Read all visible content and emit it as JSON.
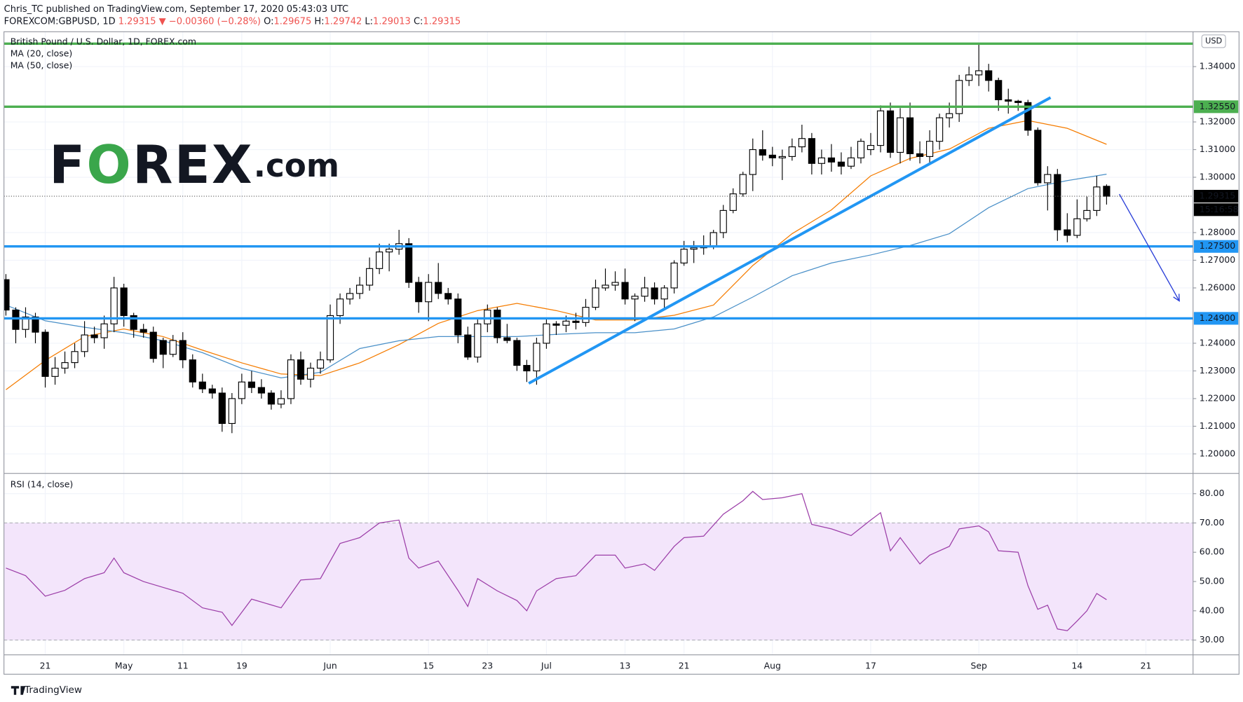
{
  "header": {
    "author_line": "Chris_TC published on TradingView.com, September 17, 2020 05:43:03 UTC",
    "symbol": "FOREXCOM:GBPUSD, 1D",
    "last": "1.29315",
    "change": "▼ −0.00360 (−0.28%)",
    "ohlc": [
      {
        "label": "O:",
        "value": "1.29675"
      },
      {
        "label": "H:",
        "value": "1.29742"
      },
      {
        "label": "L:",
        "value": "1.29013"
      },
      {
        "label": "C:",
        "value": "1.29315"
      }
    ]
  },
  "logo": "FOREX.com",
  "footer": "TradingView",
  "chart_data": [
    {
      "type": "candlestick",
      "title": "British Pound / U.S. Dollar, 1D, FOREX.com",
      "currency": "USD",
      "xlim": [
        -4.2,
        116.8
      ],
      "ylim": [
        1.1931,
        1.3526
      ],
      "yticks": [
        {
          "value": 1.34,
          "label": "1.34000"
        },
        {
          "value": 1.32,
          "label": "1.32000"
        },
        {
          "value": 1.31,
          "label": "1.31000"
        },
        {
          "value": 1.3,
          "label": "1.30000"
        },
        {
          "value": 1.28,
          "label": "1.28000"
        },
        {
          "value": 1.27,
          "label": "1.27000"
        },
        {
          "value": 1.26,
          "label": "1.26000"
        },
        {
          "value": 1.24,
          "label": "1.24000"
        },
        {
          "value": 1.23,
          "label": "1.23000"
        },
        {
          "value": 1.22,
          "label": "1.22000"
        },
        {
          "value": 1.21,
          "label": "1.21000"
        },
        {
          "value": 1.2,
          "label": "1.20000"
        }
      ],
      "candles": {
        "up_color": "#ffffff",
        "down_color": "#000000",
        "x": [
          -4,
          -3,
          -2,
          -1,
          0,
          1,
          2,
          3,
          4,
          5,
          6,
          7,
          8,
          9,
          10,
          11,
          12,
          13,
          14,
          15,
          16,
          17,
          18,
          19,
          20,
          21,
          22,
          23,
          24,
          25,
          26,
          27,
          28,
          29,
          30,
          31,
          32,
          33,
          34,
          35,
          36,
          37,
          38,
          39,
          40,
          41,
          42,
          43,
          44,
          45,
          46,
          47,
          48,
          49,
          50,
          51,
          52,
          53,
          54,
          55,
          56,
          57,
          58,
          59,
          60,
          61,
          62,
          63,
          64,
          65,
          66,
          67,
          68,
          69,
          70,
          71,
          72,
          73,
          74,
          75,
          76,
          77,
          78,
          79,
          80,
          81,
          82,
          83,
          84,
          85,
          86,
          87,
          88,
          89,
          90,
          91,
          92,
          93,
          94,
          95,
          96,
          97,
          98,
          99,
          100,
          101,
          102,
          103,
          104,
          105,
          106,
          107,
          108
        ],
        "open": [
          1.263,
          1.252,
          1.245,
          1.2495,
          1.244,
          1.228,
          1.231,
          1.233,
          1.237,
          1.243,
          1.242,
          1.247,
          1.26,
          1.25,
          1.245,
          1.244,
          1.241,
          1.236,
          1.241,
          1.234,
          1.226,
          1.2235,
          1.222,
          1.211,
          1.22,
          1.226,
          1.224,
          1.222,
          1.218,
          1.22,
          1.234,
          1.227,
          1.231,
          1.234,
          1.25,
          1.256,
          1.258,
          1.261,
          1.267,
          1.273,
          1.274,
          1.276,
          1.262,
          1.255,
          1.262,
          1.258,
          1.256,
          1.243,
          1.235,
          1.247,
          1.252,
          1.242,
          1.241,
          1.232,
          1.23,
          1.24,
          1.247,
          1.2465,
          1.248,
          1.2475,
          1.253,
          1.26,
          1.261,
          1.262,
          1.256,
          1.257,
          1.26,
          1.256,
          1.26,
          1.269,
          1.274,
          1.2745,
          1.275,
          1.28,
          1.288,
          1.294,
          1.301,
          1.31,
          1.308,
          1.307,
          1.3075,
          1.311,
          1.314,
          1.305,
          1.307,
          1.3055,
          1.304,
          1.307,
          1.31,
          1.3115,
          1.324,
          1.309,
          1.3215,
          1.3085,
          1.3075,
          1.313,
          1.3215,
          1.323,
          1.335,
          1.337,
          1.3385,
          1.335,
          1.328,
          1.3275,
          1.327,
          1.317,
          1.298,
          1.301,
          1.281,
          1.279,
          1.285,
          1.288,
          1.29675
        ],
        "high": [
          1.265,
          1.253,
          1.253,
          1.251,
          1.245,
          1.235,
          1.237,
          1.24,
          1.248,
          1.246,
          1.25,
          1.264,
          1.2615,
          1.251,
          1.247,
          1.246,
          1.242,
          1.243,
          1.244,
          1.236,
          1.229,
          1.225,
          1.224,
          1.222,
          1.229,
          1.23,
          1.227,
          1.223,
          1.223,
          1.236,
          1.237,
          1.233,
          1.237,
          1.254,
          1.258,
          1.26,
          1.264,
          1.271,
          1.276,
          1.276,
          1.281,
          1.278,
          1.264,
          1.265,
          1.269,
          1.26,
          1.258,
          1.246,
          1.249,
          1.254,
          1.253,
          1.247,
          1.242,
          1.234,
          1.242,
          1.249,
          1.248,
          1.25,
          1.251,
          1.256,
          1.263,
          1.267,
          1.266,
          1.267,
          1.258,
          1.264,
          1.262,
          1.261,
          1.27,
          1.277,
          1.277,
          1.279,
          1.281,
          1.29,
          1.296,
          1.302,
          1.314,
          1.317,
          1.311,
          1.31,
          1.314,
          1.319,
          1.316,
          1.31,
          1.312,
          1.309,
          1.311,
          1.314,
          1.316,
          1.326,
          1.327,
          1.325,
          1.327,
          1.313,
          1.317,
          1.323,
          1.327,
          1.337,
          1.34,
          1.348,
          1.341,
          1.336,
          1.332,
          1.328,
          1.328,
          1.318,
          1.304,
          1.303,
          1.287,
          1.292,
          1.293,
          1.3005,
          1.29742
        ],
        "low": [
          1.25,
          1.24,
          1.242,
          1.24,
          1.224,
          1.225,
          1.229,
          1.231,
          1.235,
          1.24,
          1.238,
          1.244,
          1.246,
          1.242,
          1.242,
          1.233,
          1.231,
          1.235,
          1.231,
          1.224,
          1.222,
          1.22,
          1.208,
          1.2075,
          1.218,
          1.222,
          1.22,
          1.216,
          1.2165,
          1.218,
          1.225,
          1.224,
          1.229,
          1.233,
          1.247,
          1.254,
          1.256,
          1.259,
          1.265,
          1.266,
          1.272,
          1.26,
          1.251,
          1.248,
          1.256,
          1.254,
          1.24,
          1.234,
          1.233,
          1.244,
          1.24,
          1.24,
          1.23,
          1.226,
          1.225,
          1.238,
          1.243,
          1.244,
          1.245,
          1.246,
          1.252,
          1.259,
          1.259,
          1.254,
          1.248,
          1.255,
          1.254,
          1.252,
          1.258,
          1.268,
          1.269,
          1.272,
          1.274,
          1.278,
          1.287,
          1.293,
          1.295,
          1.306,
          1.304,
          1.299,
          1.306,
          1.309,
          1.301,
          1.301,
          1.302,
          1.301,
          1.303,
          1.305,
          1.308,
          1.309,
          1.307,
          1.305,
          1.306,
          1.305,
          1.305,
          1.31,
          1.318,
          1.32,
          1.333,
          1.333,
          1.331,
          1.324,
          1.323,
          1.324,
          1.315,
          1.297,
          1.288,
          1.277,
          1.2765,
          1.278,
          1.284,
          1.286,
          1.29013
        ],
        "close": [
          1.252,
          1.245,
          1.2495,
          1.244,
          1.228,
          1.231,
          1.233,
          1.237,
          1.243,
          1.242,
          1.247,
          1.26,
          1.25,
          1.245,
          1.244,
          1.2345,
          1.236,
          1.241,
          1.234,
          1.226,
          1.2235,
          1.222,
          1.211,
          1.22,
          1.226,
          1.224,
          1.222,
          1.218,
          1.22,
          1.234,
          1.227,
          1.231,
          1.234,
          1.25,
          1.256,
          1.258,
          1.261,
          1.267,
          1.273,
          1.274,
          1.276,
          1.262,
          1.255,
          1.262,
          1.258,
          1.256,
          1.243,
          1.235,
          1.247,
          1.252,
          1.242,
          1.241,
          1.232,
          1.23,
          1.24,
          1.247,
          1.2465,
          1.248,
          1.2475,
          1.253,
          1.26,
          1.261,
          1.262,
          1.256,
          1.257,
          1.26,
          1.256,
          1.26,
          1.269,
          1.274,
          1.2745,
          1.275,
          1.28,
          1.288,
          1.294,
          1.301,
          1.31,
          1.308,
          1.307,
          1.3075,
          1.311,
          1.314,
          1.305,
          1.307,
          1.3055,
          1.304,
          1.307,
          1.313,
          1.3115,
          1.324,
          1.309,
          1.3215,
          1.3085,
          1.3075,
          1.313,
          1.3215,
          1.323,
          1.335,
          1.337,
          1.3385,
          1.335,
          1.328,
          1.3275,
          1.327,
          1.317,
          1.298,
          1.301,
          1.281,
          1.279,
          1.285,
          1.288,
          1.2965,
          1.29315
        ]
      },
      "series": [
        {
          "name": "MA (20, close)",
          "color": "#f57c00",
          "x": [
            -4,
            0,
            4,
            8,
            12,
            16,
            20,
            24,
            28,
            32,
            36,
            40,
            44,
            48,
            52,
            56,
            60,
            64,
            68,
            72,
            76,
            80,
            84,
            88,
            92,
            96,
            100,
            104,
            108
          ],
          "values": [
            1.2232,
            1.2338,
            1.2424,
            1.2452,
            1.2424,
            1.2375,
            1.2329,
            1.2289,
            1.2283,
            1.2329,
            1.2395,
            1.2472,
            1.2518,
            1.2544,
            1.2518,
            1.2484,
            1.2484,
            1.2501,
            1.2538,
            1.2681,
            1.2796,
            1.2882,
            1.3005,
            1.3068,
            1.3102,
            1.3177,
            1.3205,
            1.3177,
            1.3119
          ]
        },
        {
          "name": "MA (50, close)",
          "color": "#4a90c8",
          "x": [
            -4,
            0,
            4,
            8,
            12,
            16,
            20,
            24,
            28,
            32,
            36,
            40,
            44,
            48,
            52,
            56,
            60,
            64,
            68,
            72,
            76,
            80,
            84,
            88,
            92,
            96,
            100,
            104,
            108
          ],
          "values": [
            1.2538,
            1.2481,
            1.2458,
            1.2438,
            1.2409,
            1.2366,
            1.2309,
            1.2275,
            1.2295,
            1.2381,
            1.2409,
            1.2424,
            1.2424,
            1.2424,
            1.2432,
            1.2438,
            1.2438,
            1.2452,
            1.2495,
            1.2567,
            1.2644,
            1.269,
            1.2719,
            1.2753,
            1.2796,
            1.289,
            1.2959,
            1.2988,
            1.3011
          ]
        }
      ],
      "levels": [
        {
          "value": 1.3483,
          "color": "#4caf50"
        },
        {
          "value": 1.3255,
          "label": "1.32550",
          "color": "#4caf50"
        },
        {
          "value": 1.275,
          "label": "1.27500",
          "color": "#2196f3"
        },
        {
          "value": 1.249,
          "label": "1.24900",
          "color": "#2196f3"
        }
      ],
      "last_price": {
        "value": 1.29315,
        "label": "1.29315",
        "countdown": "15:16:58"
      },
      "trendlines": [
        {
          "x": [
            49.2,
            102.3
          ],
          "y": [
            1.2255,
            1.3288
          ],
          "color": "#2196f3"
        },
        {
          "x": [
            109.3,
            115.4
          ],
          "y": [
            1.2939,
            1.2553
          ],
          "color": "#2a3fd8",
          "arrow": true
        }
      ]
    },
    {
      "type": "line",
      "xlim": [
        -4.2,
        116.8
      ],
      "ylim": [
        25.1,
        86.8
      ],
      "xticks": [
        {
          "value": 0,
          "label": "21"
        },
        {
          "value": 8,
          "label": "May"
        },
        {
          "value": 14,
          "label": "11"
        },
        {
          "value": 20,
          "label": "19"
        },
        {
          "value": 29,
          "label": "Jun"
        },
        {
          "value": 39,
          "label": "15"
        },
        {
          "value": 45,
          "label": "23"
        },
        {
          "value": 51,
          "label": "Jul"
        },
        {
          "value": 59,
          "label": "13"
        },
        {
          "value": 65,
          "label": "21"
        },
        {
          "value": 74,
          "label": "Aug"
        },
        {
          "value": 84,
          "label": "17"
        },
        {
          "value": 95,
          "label": "Sep"
        },
        {
          "value": 105,
          "label": "14"
        },
        {
          "value": 112,
          "label": "21"
        }
      ],
      "yticks": [
        {
          "value": 80,
          "label": "80.00"
        },
        {
          "value": 70,
          "label": "70.00"
        },
        {
          "value": 60,
          "label": "60.00"
        },
        {
          "value": 50,
          "label": "50.00"
        },
        {
          "value": 40,
          "label": "40.00"
        },
        {
          "value": 30,
          "label": "30.00"
        }
      ],
      "band": [
        30,
        70
      ],
      "band_color": "#f3e5fb",
      "series": [
        {
          "name": "RSI (14, close)",
          "color": "#9c3ea8",
          "x": [
            -4,
            -2,
            0,
            2,
            4,
            6,
            7,
            8,
            10,
            12,
            14,
            16,
            18,
            19,
            21,
            24,
            26,
            28,
            30,
            32,
            34,
            36,
            37,
            38,
            40,
            42,
            43,
            44,
            46,
            48,
            49,
            50,
            52,
            54,
            56,
            58,
            59,
            61,
            62,
            64,
            65,
            67,
            69,
            71,
            72,
            73,
            75,
            77,
            78,
            80,
            82,
            84,
            85,
            86,
            87,
            89,
            90,
            92,
            93,
            95,
            96,
            97,
            99,
            100,
            101,
            102,
            103,
            104,
            105,
            106,
            107,
            108
          ],
          "values": [
            54.6,
            52,
            45,
            47,
            51,
            53,
            58,
            53,
            50,
            48,
            46,
            41,
            39.5,
            35,
            44,
            41,
            50.5,
            51,
            63,
            65,
            70,
            71,
            58,
            54.6,
            57,
            47,
            41.5,
            51,
            46.8,
            43.5,
            40,
            46.8,
            51,
            52,
            59,
            59,
            54.6,
            56,
            53.8,
            62,
            65,
            65.5,
            73,
            77.6,
            80.8,
            78,
            78.6,
            80,
            69.5,
            68,
            65.7,
            71,
            73.5,
            60.5,
            65,
            56,
            59,
            62,
            68,
            69,
            67,
            60.5,
            60,
            48.6,
            40.5,
            41.9,
            33.8,
            33.2,
            36.5,
            40,
            45.9,
            43.8
          ]
        }
      ]
    }
  ]
}
